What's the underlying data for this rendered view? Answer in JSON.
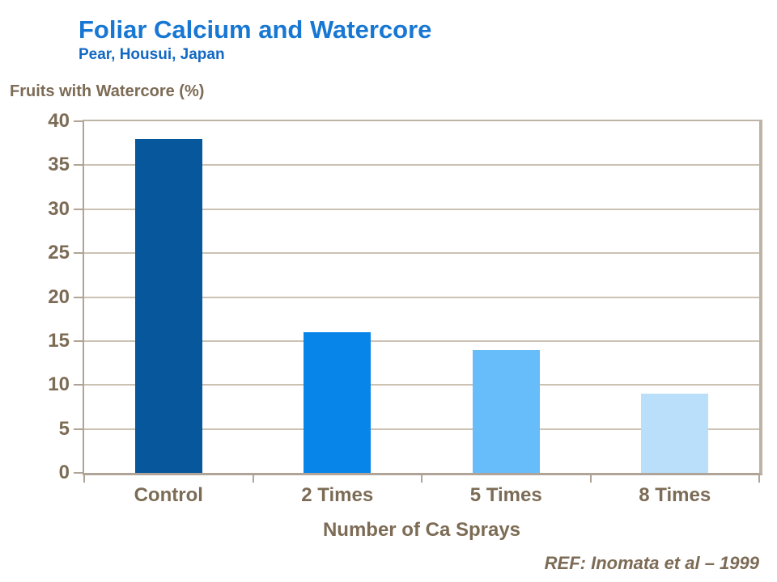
{
  "header": {
    "title": "Foliar Calcium and Watercore",
    "subtitle": "Pear, Housui, Japan"
  },
  "footer": {
    "reference": "REF: Inomata et al – 1999"
  },
  "chart_data": {
    "type": "bar",
    "title": "Foliar Calcium and Watercore",
    "subtitle": "Pear, Housui, Japan",
    "ylabel": "Fruits with Watercore (%)",
    "xlabel": "Number of Ca Sprays",
    "categories": [
      "Control",
      "2 Times",
      "5 Times",
      "8 Times"
    ],
    "values": [
      38,
      16,
      14,
      9
    ],
    "bar_colors": [
      "#07579C",
      "#0885E8",
      "#67BDFA",
      "#B9DFFB"
    ],
    "ylim": [
      0,
      40
    ],
    "ytick_values": [
      0,
      5,
      10,
      15,
      20,
      25,
      30,
      35,
      40
    ],
    "grid": true,
    "legend": false
  },
  "colors": {
    "title": "#1777D2",
    "subtitle": "#1268C2",
    "text": "#7C6B55",
    "axis": "#AFA497",
    "frame": "#BDB3A6",
    "grid": "#CCC2B4",
    "background": "#FFFFFF"
  }
}
